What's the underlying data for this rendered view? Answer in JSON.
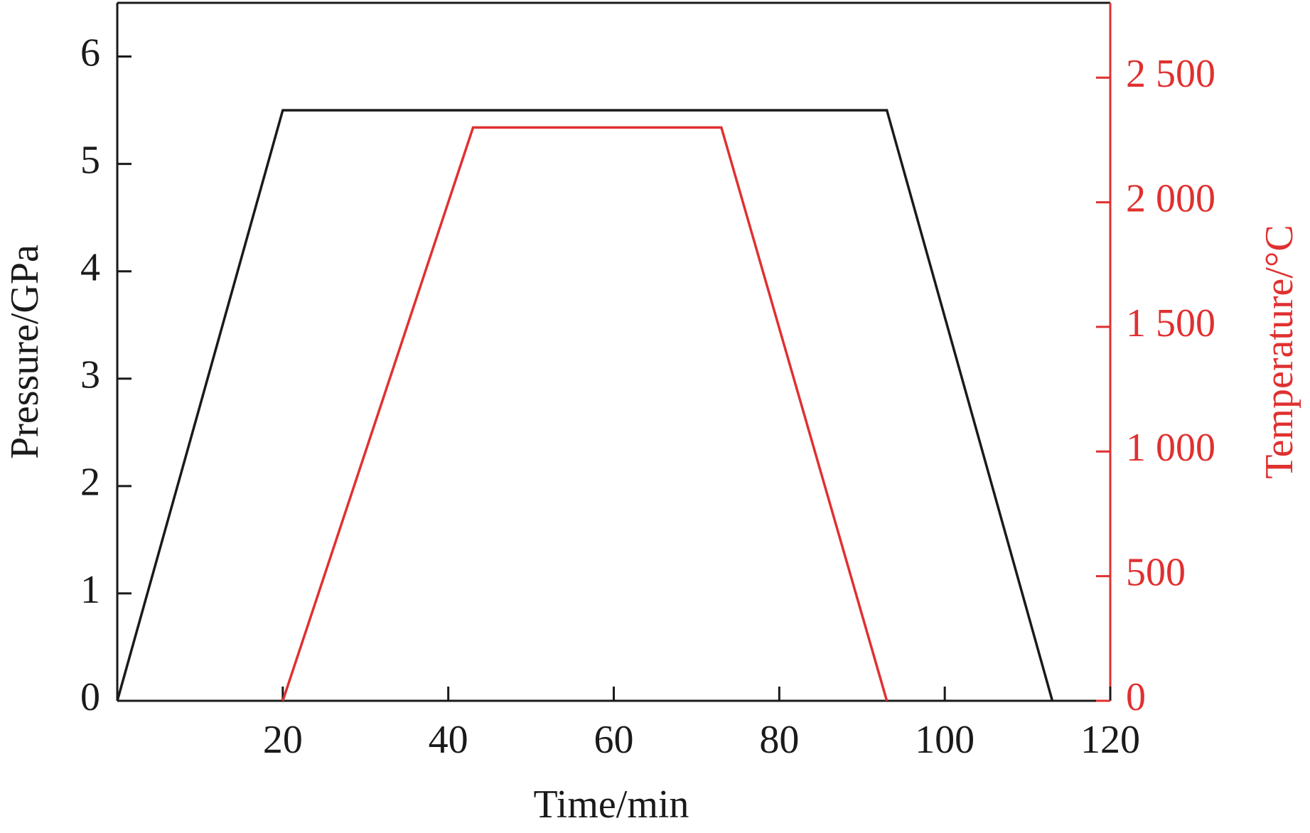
{
  "chart_data": {
    "type": "line",
    "xlabel": "Time/min",
    "ylabel": "Pressure/GPa",
    "y2label": "Temperature/°C",
    "xlim": [
      0,
      120
    ],
    "xticks": [
      20,
      40,
      60,
      80,
      100,
      120
    ],
    "ylim": [
      0,
      6.5
    ],
    "yticks": [
      0,
      1,
      2,
      3,
      4,
      5,
      6
    ],
    "y2lim": [
      0,
      2800
    ],
    "y2ticks": [
      0,
      500,
      {
        "value": 1000,
        "label": "1 000"
      },
      {
        "value": 1500,
        "label": "1 500"
      },
      {
        "value": 2000,
        "label": "2 000"
      },
      {
        "value": 2500,
        "label": "2 500"
      }
    ],
    "y2color": "#e03030",
    "series": [
      {
        "name": "Pressure",
        "color": "#1a1a1a",
        "x": [
          0,
          20,
          93,
          113
        ],
        "values": [
          0,
          5.5,
          5.5,
          0
        ]
      },
      {
        "name": "Temperature",
        "color": "#e03030",
        "axis": "y2",
        "x": [
          20,
          43,
          73,
          93
        ],
        "values": [
          0,
          2300,
          2300,
          0
        ]
      }
    ]
  }
}
